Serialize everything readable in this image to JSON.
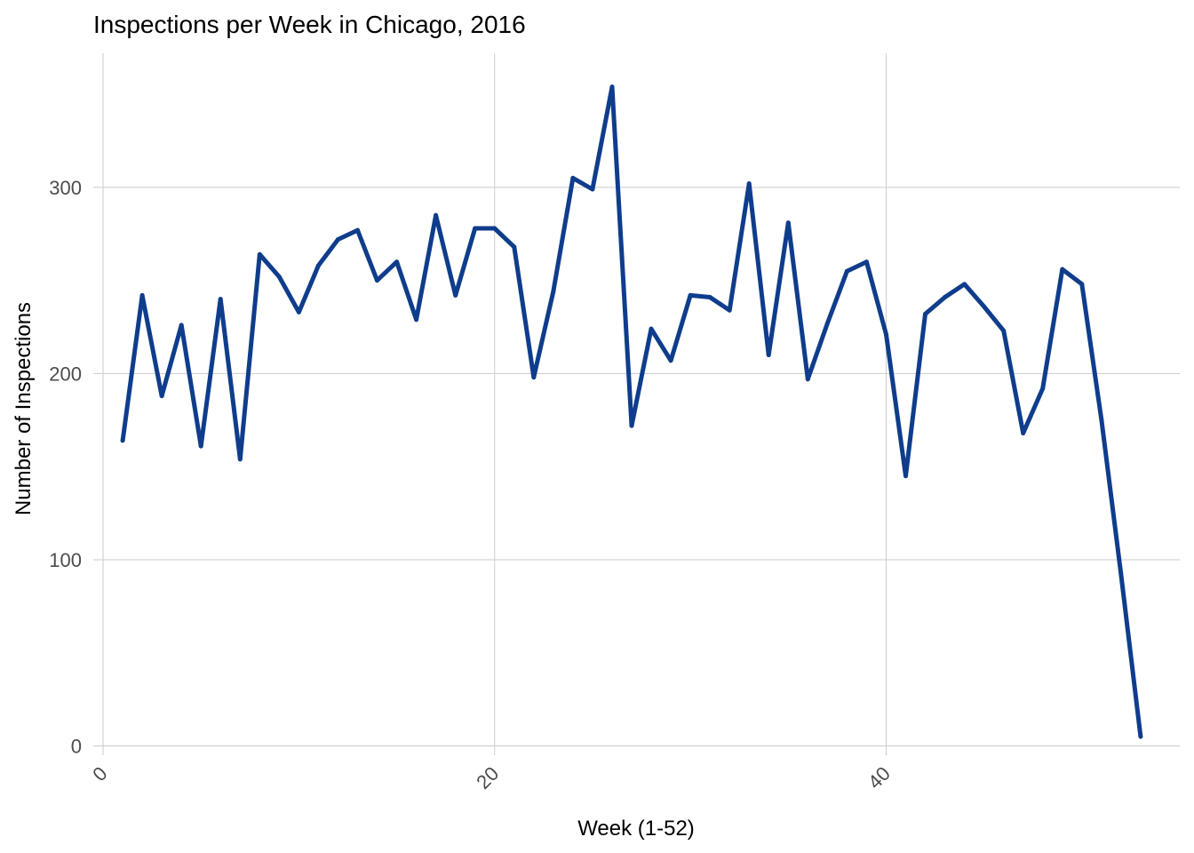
{
  "chart_data": {
    "type": "line",
    "title": "Inspections per Week in Chicago, 2016",
    "xlabel": "Week (1-52)",
    "ylabel": "Number of Inspections",
    "xlim": [
      -0.5,
      55
    ],
    "ylim": [
      -5,
      372
    ],
    "x_ticks": [
      0,
      20,
      40
    ],
    "y_ticks": [
      0,
      100,
      200,
      300
    ],
    "grid": true,
    "series_color": "#0f3d8c",
    "x": [
      1,
      2,
      3,
      4,
      5,
      6,
      7,
      8,
      9,
      10,
      11,
      12,
      13,
      14,
      15,
      16,
      17,
      18,
      19,
      20,
      21,
      22,
      23,
      24,
      25,
      26,
      27,
      28,
      29,
      30,
      31,
      32,
      33,
      34,
      35,
      36,
      37,
      38,
      39,
      40,
      41,
      42,
      43,
      44,
      45,
      46,
      47,
      48,
      49,
      50,
      51,
      52,
      53
    ],
    "y": [
      164,
      242,
      188,
      226,
      161,
      240,
      154,
      264,
      252,
      233,
      258,
      272,
      277,
      250,
      260,
      229,
      285,
      242,
      278,
      278,
      268,
      198,
      244,
      305,
      299,
      354,
      172,
      224,
      207,
      242,
      241,
      234,
      302,
      210,
      281,
      197,
      227,
      255,
      260,
      221,
      145,
      232,
      241,
      248,
      236,
      223,
      168,
      192,
      256,
      248,
      175,
      92,
      5
    ]
  }
}
